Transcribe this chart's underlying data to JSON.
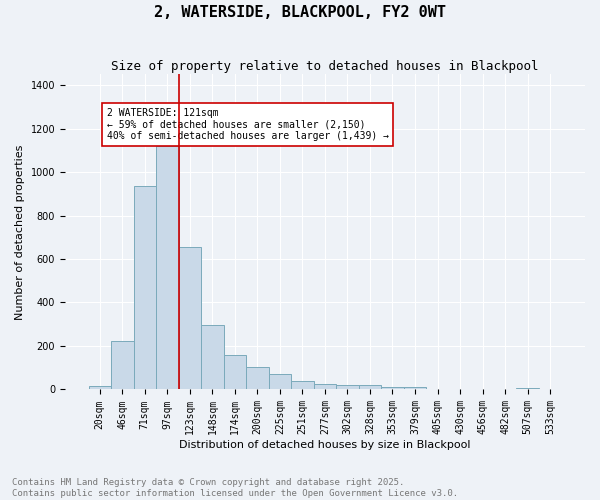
{
  "title": "2, WATERSIDE, BLACKPOOL, FY2 0WT",
  "subtitle": "Size of property relative to detached houses in Blackpool",
  "xlabel": "Distribution of detached houses by size in Blackpool",
  "ylabel": "Number of detached properties",
  "bar_labels": [
    "20sqm",
    "46sqm",
    "71sqm",
    "97sqm",
    "123sqm",
    "148sqm",
    "174sqm",
    "200sqm",
    "225sqm",
    "251sqm",
    "277sqm",
    "302sqm",
    "328sqm",
    "353sqm",
    "379sqm",
    "405sqm",
    "430sqm",
    "456sqm",
    "482sqm",
    "507sqm",
    "533sqm"
  ],
  "bar_values": [
    15,
    225,
    935,
    1120,
    655,
    295,
    160,
    105,
    70,
    38,
    25,
    20,
    20,
    12,
    10,
    0,
    0,
    0,
    0,
    5,
    0
  ],
  "bar_color": "#c9d9e8",
  "bar_edge_color": "#7aaabb",
  "vline_color": "#cc0000",
  "annotation_text": "2 WATERSIDE: 121sqm\n← 59% of detached houses are smaller (2,150)\n40% of semi-detached houses are larger (1,439) →",
  "annotation_box_color": "#ffffff",
  "annotation_box_edge": "#cc0000",
  "ylim": [
    0,
    1450
  ],
  "yticks": [
    0,
    200,
    400,
    600,
    800,
    1000,
    1200,
    1400
  ],
  "footnote": "Contains HM Land Registry data © Crown copyright and database right 2025.\nContains public sector information licensed under the Open Government Licence v3.0.",
  "background_color": "#eef2f7",
  "grid_color": "#ffffff",
  "title_fontsize": 11,
  "subtitle_fontsize": 9,
  "label_fontsize": 8,
  "tick_fontsize": 7,
  "annotation_fontsize": 7,
  "footnote_fontsize": 6.5
}
